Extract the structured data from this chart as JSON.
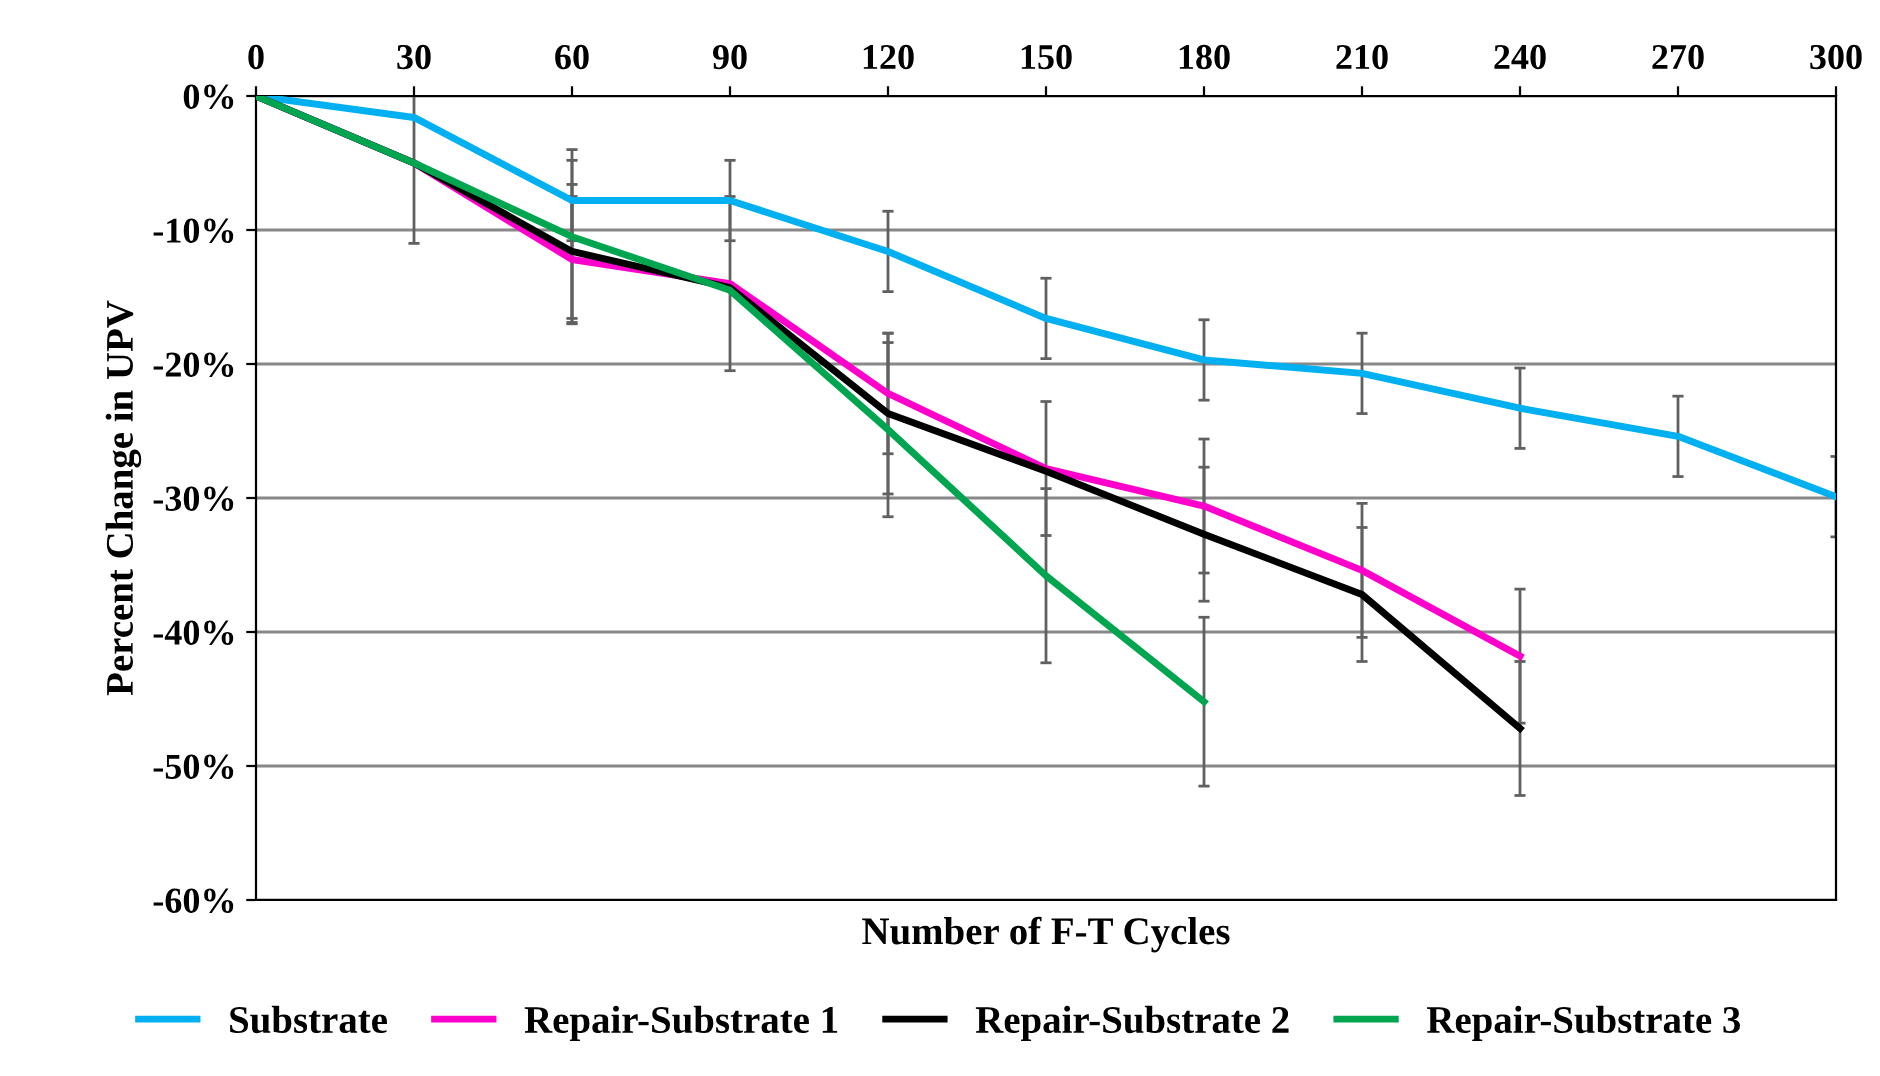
{
  "chart_data": {
    "type": "line",
    "xlabel": "Number of F-T Cycles",
    "ylabel": "Percent Change in UPV",
    "xlim": [
      0,
      300
    ],
    "xticks": [
      0,
      30,
      60,
      90,
      120,
      150,
      180,
      210,
      240,
      270,
      300
    ],
    "ylim": [
      -60,
      0
    ],
    "yticks": [
      {
        "value": 0,
        "label": "0%"
      },
      {
        "value": -10,
        "label": "-10%"
      },
      {
        "value": -20,
        "label": "-20%"
      },
      {
        "value": -30,
        "label": "-30%"
      },
      {
        "value": -40,
        "label": "-40%"
      },
      {
        "value": -50,
        "label": "-50%"
      },
      {
        "value": -60,
        "label": "-60%"
      }
    ],
    "grid": "y",
    "legend": "bottom",
    "marker": "none",
    "line_style": "solid",
    "series": [
      {
        "name": "Substrate",
        "color": "#00b0f0",
        "x": [
          0,
          30,
          60,
          90,
          120,
          150,
          180,
          210,
          240,
          270,
          300
        ],
        "values": [
          0,
          -1.6,
          -7.8,
          -7.8,
          -11.6,
          -16.6,
          -19.7,
          -20.7,
          -23.3,
          -25.4,
          -29.9
        ],
        "errors": [
          null,
          null,
          3,
          3,
          3,
          3,
          3,
          3,
          3,
          3,
          3
        ]
      },
      {
        "name": "Repair-Substrate 1",
        "color": "#ff00cc",
        "x": [
          0,
          30,
          60,
          90,
          120,
          150,
          180,
          210,
          240
        ],
        "values": [
          0,
          -5,
          -12.2,
          -14,
          -22.2,
          -27.8,
          -30.6,
          -35.4,
          -41.8
        ],
        "errors": [
          null,
          6,
          4.7,
          6.5,
          4.5,
          5,
          5,
          5,
          5
        ]
      },
      {
        "name": "Repair-Substrate 2",
        "color": "#000000",
        "x": [
          0,
          30,
          60,
          90,
          120,
          150,
          180,
          210,
          240
        ],
        "values": [
          0,
          -5,
          -11.6,
          -14.3,
          -23.7,
          -28,
          -32.7,
          -37.2,
          -47.2
        ],
        "errors": [
          null,
          null,
          5,
          null,
          6,
          null,
          5,
          5,
          5
        ]
      },
      {
        "name": "Repair-Substrate 3",
        "color": "#00a550",
        "x": [
          0,
          30,
          60,
          90,
          120,
          150,
          180
        ],
        "values": [
          0,
          -5,
          -10.5,
          -14.5,
          -24.9,
          -35.8,
          -45.2
        ],
        "errors": [
          null,
          null,
          6.5,
          null,
          6.5,
          6.5,
          6.3
        ]
      }
    ]
  }
}
